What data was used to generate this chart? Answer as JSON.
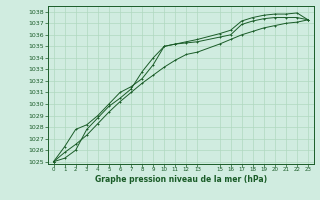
{
  "bg_color": "#d0ece0",
  "grid_color": "#b0d8c0",
  "line_color": "#1a5c28",
  "xlim_min": -0.5,
  "xlim_max": 23.5,
  "ylim_min": 1024.8,
  "ylim_max": 1038.5,
  "yticks": [
    1025,
    1026,
    1027,
    1028,
    1029,
    1030,
    1031,
    1032,
    1033,
    1034,
    1035,
    1036,
    1037,
    1038
  ],
  "xtick_vals": [
    0,
    1,
    2,
    3,
    4,
    5,
    6,
    7,
    8,
    9,
    10,
    11,
    12,
    13,
    15,
    16,
    17,
    18,
    19,
    20,
    21,
    22,
    23
  ],
  "xtick_labels": [
    "0",
    "1",
    "2",
    "3",
    "4",
    "5",
    "6",
    "7",
    "8",
    "9",
    "10",
    "11",
    "12",
    "13",
    "15",
    "16",
    "17",
    "18",
    "19",
    "20",
    "21",
    "22",
    "23"
  ],
  "xlabel_str": "Graphe pression niveau de la mer (hPa)",
  "line1_x": [
    0,
    1,
    2,
    3,
    4,
    5,
    6,
    7,
    8,
    9,
    10,
    11,
    12,
    13,
    15,
    16,
    17,
    18,
    19,
    20,
    21,
    22,
    23
  ],
  "line1_y": [
    1025.0,
    1026.3,
    1027.8,
    1028.2,
    1029.0,
    1030.0,
    1031.0,
    1031.5,
    1032.2,
    1033.4,
    1035.0,
    1035.2,
    1035.3,
    1035.4,
    1035.8,
    1036.0,
    1036.9,
    1037.2,
    1037.4,
    1037.5,
    1037.5,
    1037.5,
    1037.3
  ],
  "line2_x": [
    0,
    1,
    2,
    3,
    4,
    5,
    6,
    7,
    8,
    9,
    10,
    11,
    12,
    13,
    15,
    16,
    17,
    18,
    19,
    20,
    21,
    22,
    23
  ],
  "line2_y": [
    1025.0,
    1025.8,
    1026.5,
    1027.3,
    1028.3,
    1029.3,
    1030.2,
    1031.0,
    1031.8,
    1032.5,
    1033.2,
    1033.8,
    1034.3,
    1034.5,
    1035.2,
    1035.6,
    1036.0,
    1036.3,
    1036.6,
    1036.8,
    1037.0,
    1037.1,
    1037.3
  ],
  "line3_x": [
    0,
    1,
    2,
    3,
    4,
    5,
    6,
    7,
    8,
    9,
    10,
    11,
    12,
    13,
    15,
    16,
    17,
    18,
    19,
    20,
    21,
    22,
    23
  ],
  "line3_y": [
    1025.0,
    1025.3,
    1026.0,
    1027.8,
    1028.8,
    1029.8,
    1030.5,
    1031.3,
    1032.8,
    1034.0,
    1035.0,
    1035.2,
    1035.4,
    1035.6,
    1036.1,
    1036.4,
    1037.2,
    1037.5,
    1037.7,
    1037.8,
    1037.8,
    1037.9,
    1037.3
  ],
  "ytick_fontsize": 4.5,
  "xtick_fontsize": 4.0,
  "xlabel_fontsize": 5.5
}
